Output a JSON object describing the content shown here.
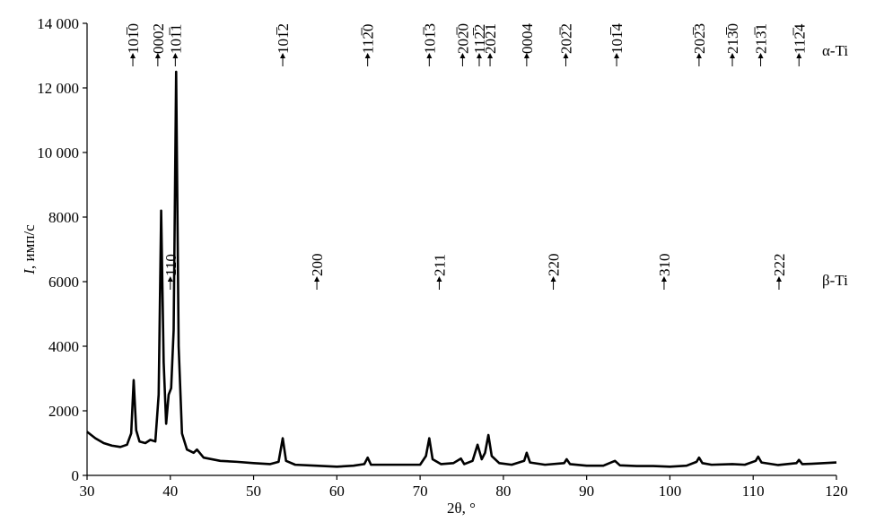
{
  "chart_data": {
    "type": "line",
    "xlabel": "2θ, °",
    "ylabel_symbol": "I",
    "ylabel_rest": ", имп/с",
    "xlim": [
      30,
      120
    ],
    "xticks": [
      30,
      40,
      50,
      60,
      70,
      80,
      90,
      100,
      110,
      120
    ],
    "ylim": [
      0,
      14000
    ],
    "yticks": [
      0,
      2000,
      4000,
      6000,
      8000,
      {
        "value": 10000,
        "label": "10 000"
      },
      {
        "value": 12000,
        "label": "12 000"
      },
      {
        "value": 14000,
        "label": "14 000"
      }
    ],
    "x": [
      30,
      31,
      32,
      33,
      34,
      34.8,
      35.3,
      35.6,
      35.9,
      36.3,
      37,
      37.6,
      38.2,
      38.6,
      38.9,
      39.2,
      39.5,
      39.8,
      40.1,
      40.4,
      40.7,
      41.0,
      41.4,
      42,
      42.8,
      43.2,
      44,
      46,
      48,
      50,
      52,
      53,
      53.5,
      53.9,
      55,
      57.5,
      60,
      62,
      63.3,
      63.7,
      64.1,
      66,
      68,
      70,
      70.7,
      71.1,
      71.5,
      72.5,
      74,
      74.9,
      75.3,
      76.3,
      76.9,
      77.4,
      77.8,
      78.2,
      78.6,
      79.5,
      81,
      82.5,
      82.8,
      83.2,
      85,
      87.3,
      87.6,
      88,
      90,
      92,
      93.4,
      94,
      96,
      98,
      100,
      102,
      103.2,
      103.5,
      103.9,
      105,
      107.5,
      109,
      110.3,
      110.6,
      111,
      113,
      115.2,
      115.5,
      115.9,
      117,
      120
    ],
    "series": [
      {
        "color": "#000000",
        "values": [
          1350,
          1150,
          1000,
          920,
          880,
          950,
          1300,
          2950,
          1400,
          1050,
          1000,
          1100,
          1050,
          2500,
          8200,
          3500,
          1600,
          2500,
          2700,
          4500,
          12500,
          4000,
          1300,
          800,
          700,
          800,
          550,
          450,
          420,
          380,
          350,
          420,
          1150,
          450,
          330,
          300,
          270,
          300,
          350,
          550,
          330,
          330,
          330,
          330,
          600,
          1150,
          500,
          350,
          380,
          520,
          350,
          450,
          950,
          500,
          700,
          1250,
          600,
          380,
          330,
          450,
          700,
          400,
          330,
          380,
          500,
          350,
          300,
          300,
          450,
          310,
          290,
          290,
          270,
          300,
          420,
          550,
          380,
          330,
          350,
          330,
          450,
          580,
          400,
          320,
          380,
          480,
          350,
          360,
          400
        ]
      }
    ],
    "annotations": {
      "alpha": {
        "label": "α-Ti",
        "peaks": [
          {
            "x": 35.5,
            "label": "101̅0"
          },
          {
            "x": 38.5,
            "label": "0002"
          },
          {
            "x": 40.6,
            "label": "101̅1"
          },
          {
            "x": 53.5,
            "label": "101̅2"
          },
          {
            "x": 63.7,
            "label": "112̅0"
          },
          {
            "x": 71.1,
            "label": "101̅3"
          },
          {
            "x": 75.1,
            "label": "202̅0"
          },
          {
            "x": 77.1,
            "label": "112̅2"
          },
          {
            "x": 78.4,
            "label": "202̅1"
          },
          {
            "x": 82.8,
            "label": "0004"
          },
          {
            "x": 87.5,
            "label": "202̅2"
          },
          {
            "x": 93.6,
            "label": "101̅4"
          },
          {
            "x": 103.5,
            "label": "202̅3"
          },
          {
            "x": 107.5,
            "label": "213̅0"
          },
          {
            "x": 110.9,
            "label": "213̅1"
          },
          {
            "x": 115.5,
            "label": "112̅4"
          }
        ]
      },
      "beta": {
        "label": "β-Ti",
        "peaks": [
          {
            "x": 40.0,
            "label": "110"
          },
          {
            "x": 57.6,
            "label": "200"
          },
          {
            "x": 72.3,
            "label": "211"
          },
          {
            "x": 86.0,
            "label": "220"
          },
          {
            "x": 99.3,
            "label": "310"
          },
          {
            "x": 113.1,
            "label": "222"
          }
        ]
      }
    }
  }
}
